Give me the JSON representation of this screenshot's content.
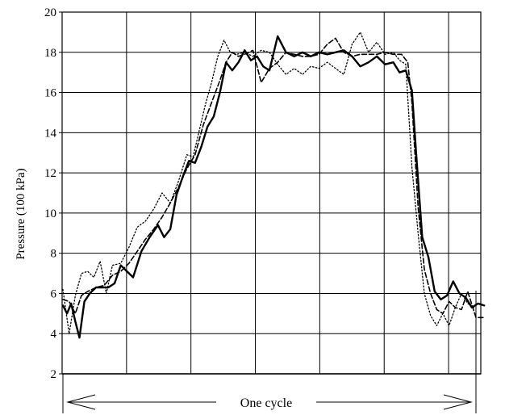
{
  "chart_data": {
    "type": "line",
    "ylabel": "Pressure (100 kPa)",
    "xlabel": "",
    "ylim": [
      2,
      20
    ],
    "xlim": [
      0,
      1
    ],
    "yticks": [
      2,
      4,
      6,
      8,
      10,
      12,
      14,
      16,
      18,
      20
    ],
    "grid": true,
    "cycle_annotation": "One cycle",
    "series": [
      {
        "style": "solid",
        "color": "#000000",
        "points": [
          [
            0.0,
            5.4
          ],
          [
            0.01,
            5.0
          ],
          [
            0.02,
            5.5
          ],
          [
            0.03,
            4.6
          ],
          [
            0.04,
            3.8
          ],
          [
            0.052,
            5.6
          ],
          [
            0.065,
            6.0
          ],
          [
            0.08,
            6.3
          ],
          [
            0.095,
            6.3
          ],
          [
            0.11,
            6.3
          ],
          [
            0.125,
            6.5
          ],
          [
            0.14,
            7.4
          ],
          [
            0.155,
            7.1
          ],
          [
            0.17,
            6.8
          ],
          [
            0.19,
            8.1
          ],
          [
            0.21,
            8.8
          ],
          [
            0.23,
            9.4
          ],
          [
            0.245,
            8.8
          ],
          [
            0.26,
            9.2
          ],
          [
            0.275,
            10.9
          ],
          [
            0.29,
            11.8
          ],
          [
            0.305,
            12.6
          ],
          [
            0.32,
            12.5
          ],
          [
            0.335,
            13.3
          ],
          [
            0.35,
            14.3
          ],
          [
            0.365,
            14.8
          ],
          [
            0.38,
            16.0
          ],
          [
            0.395,
            17.5
          ],
          [
            0.41,
            17.1
          ],
          [
            0.425,
            17.5
          ],
          [
            0.44,
            18.1
          ],
          [
            0.455,
            17.6
          ],
          [
            0.47,
            17.8
          ],
          [
            0.485,
            17.3
          ],
          [
            0.5,
            17.1
          ],
          [
            0.52,
            18.8
          ],
          [
            0.54,
            18.0
          ],
          [
            0.56,
            17.8
          ],
          [
            0.58,
            18.0
          ],
          [
            0.6,
            17.8
          ],
          [
            0.62,
            18.0
          ],
          [
            0.64,
            17.9
          ],
          [
            0.66,
            18.0
          ],
          [
            0.68,
            18.1
          ],
          [
            0.7,
            17.8
          ],
          [
            0.72,
            17.3
          ],
          [
            0.74,
            17.5
          ],
          [
            0.76,
            17.8
          ],
          [
            0.78,
            17.4
          ],
          [
            0.8,
            17.5
          ],
          [
            0.815,
            17.0
          ],
          [
            0.83,
            17.1
          ],
          [
            0.845,
            16.1
          ],
          [
            0.855,
            13.0
          ],
          [
            0.87,
            8.8
          ],
          [
            0.885,
            7.8
          ],
          [
            0.9,
            6.1
          ],
          [
            0.915,
            5.7
          ],
          [
            0.93,
            5.9
          ],
          [
            0.945,
            6.6
          ],
          [
            0.96,
            6.0
          ],
          [
            0.975,
            5.8
          ],
          [
            0.99,
            5.3
          ],
          [
            1.005,
            5.5
          ],
          [
            1.02,
            5.4
          ]
        ]
      },
      {
        "style": "dashed",
        "color": "#000000",
        "points": [
          [
            0.0,
            5.7
          ],
          [
            0.015,
            5.6
          ],
          [
            0.03,
            5.0
          ],
          [
            0.045,
            5.9
          ],
          [
            0.06,
            6.1
          ],
          [
            0.08,
            6.3
          ],
          [
            0.1,
            6.4
          ],
          [
            0.12,
            6.9
          ],
          [
            0.14,
            7.1
          ],
          [
            0.16,
            7.5
          ],
          [
            0.18,
            8.1
          ],
          [
            0.2,
            8.7
          ],
          [
            0.22,
            9.2
          ],
          [
            0.24,
            9.8
          ],
          [
            0.26,
            10.5
          ],
          [
            0.28,
            11.3
          ],
          [
            0.3,
            12.2
          ],
          [
            0.32,
            12.9
          ],
          [
            0.34,
            14.4
          ],
          [
            0.36,
            15.5
          ],
          [
            0.38,
            16.6
          ],
          [
            0.395,
            17.5
          ],
          [
            0.41,
            18.0
          ],
          [
            0.425,
            17.8
          ],
          [
            0.44,
            17.9
          ],
          [
            0.46,
            18.1
          ],
          [
            0.48,
            16.5
          ],
          [
            0.5,
            17.2
          ],
          [
            0.52,
            17.5
          ],
          [
            0.54,
            18.0
          ],
          [
            0.56,
            17.9
          ],
          [
            0.58,
            17.8
          ],
          [
            0.6,
            17.8
          ],
          [
            0.62,
            17.9
          ],
          [
            0.64,
            18.4
          ],
          [
            0.66,
            18.7
          ],
          [
            0.68,
            18.0
          ],
          [
            0.7,
            17.8
          ],
          [
            0.72,
            17.9
          ],
          [
            0.74,
            17.9
          ],
          [
            0.76,
            17.9
          ],
          [
            0.78,
            18.0
          ],
          [
            0.8,
            17.9
          ],
          [
            0.82,
            17.9
          ],
          [
            0.835,
            17.5
          ],
          [
            0.845,
            15.5
          ],
          [
            0.86,
            10.3
          ],
          [
            0.875,
            7.2
          ],
          [
            0.89,
            6.0
          ],
          [
            0.905,
            5.2
          ],
          [
            0.92,
            5.0
          ],
          [
            0.935,
            5.6
          ],
          [
            0.95,
            5.3
          ],
          [
            0.965,
            5.2
          ],
          [
            0.98,
            6.1
          ],
          [
            1.0,
            4.8
          ],
          [
            1.02,
            4.8
          ]
        ]
      },
      {
        "style": "dotted",
        "color": "#000000",
        "points": [
          [
            0.0,
            6.2
          ],
          [
            0.015,
            4.0
          ],
          [
            0.03,
            5.9
          ],
          [
            0.045,
            7.0
          ],
          [
            0.06,
            7.1
          ],
          [
            0.075,
            6.8
          ],
          [
            0.09,
            7.6
          ],
          [
            0.105,
            6.0
          ],
          [
            0.12,
            7.4
          ],
          [
            0.14,
            7.5
          ],
          [
            0.16,
            8.3
          ],
          [
            0.18,
            9.3
          ],
          [
            0.2,
            9.6
          ],
          [
            0.22,
            10.2
          ],
          [
            0.24,
            11.0
          ],
          [
            0.26,
            10.5
          ],
          [
            0.28,
            11.6
          ],
          [
            0.3,
            12.9
          ],
          [
            0.315,
            12.8
          ],
          [
            0.33,
            14.1
          ],
          [
            0.345,
            15.4
          ],
          [
            0.36,
            16.5
          ],
          [
            0.375,
            17.8
          ],
          [
            0.39,
            18.6
          ],
          [
            0.405,
            18.0
          ],
          [
            0.42,
            17.9
          ],
          [
            0.44,
            18.0
          ],
          [
            0.46,
            17.8
          ],
          [
            0.48,
            18.1
          ],
          [
            0.5,
            18.0
          ],
          [
            0.52,
            17.4
          ],
          [
            0.54,
            16.9
          ],
          [
            0.56,
            17.2
          ],
          [
            0.58,
            16.9
          ],
          [
            0.6,
            17.3
          ],
          [
            0.62,
            17.2
          ],
          [
            0.64,
            17.5
          ],
          [
            0.66,
            17.2
          ],
          [
            0.68,
            16.9
          ],
          [
            0.7,
            18.4
          ],
          [
            0.72,
            19.0
          ],
          [
            0.74,
            18.0
          ],
          [
            0.76,
            18.5
          ],
          [
            0.78,
            17.9
          ],
          [
            0.8,
            18.0
          ],
          [
            0.815,
            17.6
          ],
          [
            0.83,
            17.4
          ],
          [
            0.845,
            12.3
          ],
          [
            0.86,
            9.0
          ],
          [
            0.875,
            6.0
          ],
          [
            0.89,
            4.9
          ],
          [
            0.905,
            4.4
          ],
          [
            0.92,
            5.0
          ],
          [
            0.935,
            4.4
          ],
          [
            0.95,
            5.3
          ],
          [
            0.965,
            6.0
          ],
          [
            0.98,
            5.5
          ],
          [
            0.995,
            5.3
          ]
        ]
      }
    ]
  }
}
